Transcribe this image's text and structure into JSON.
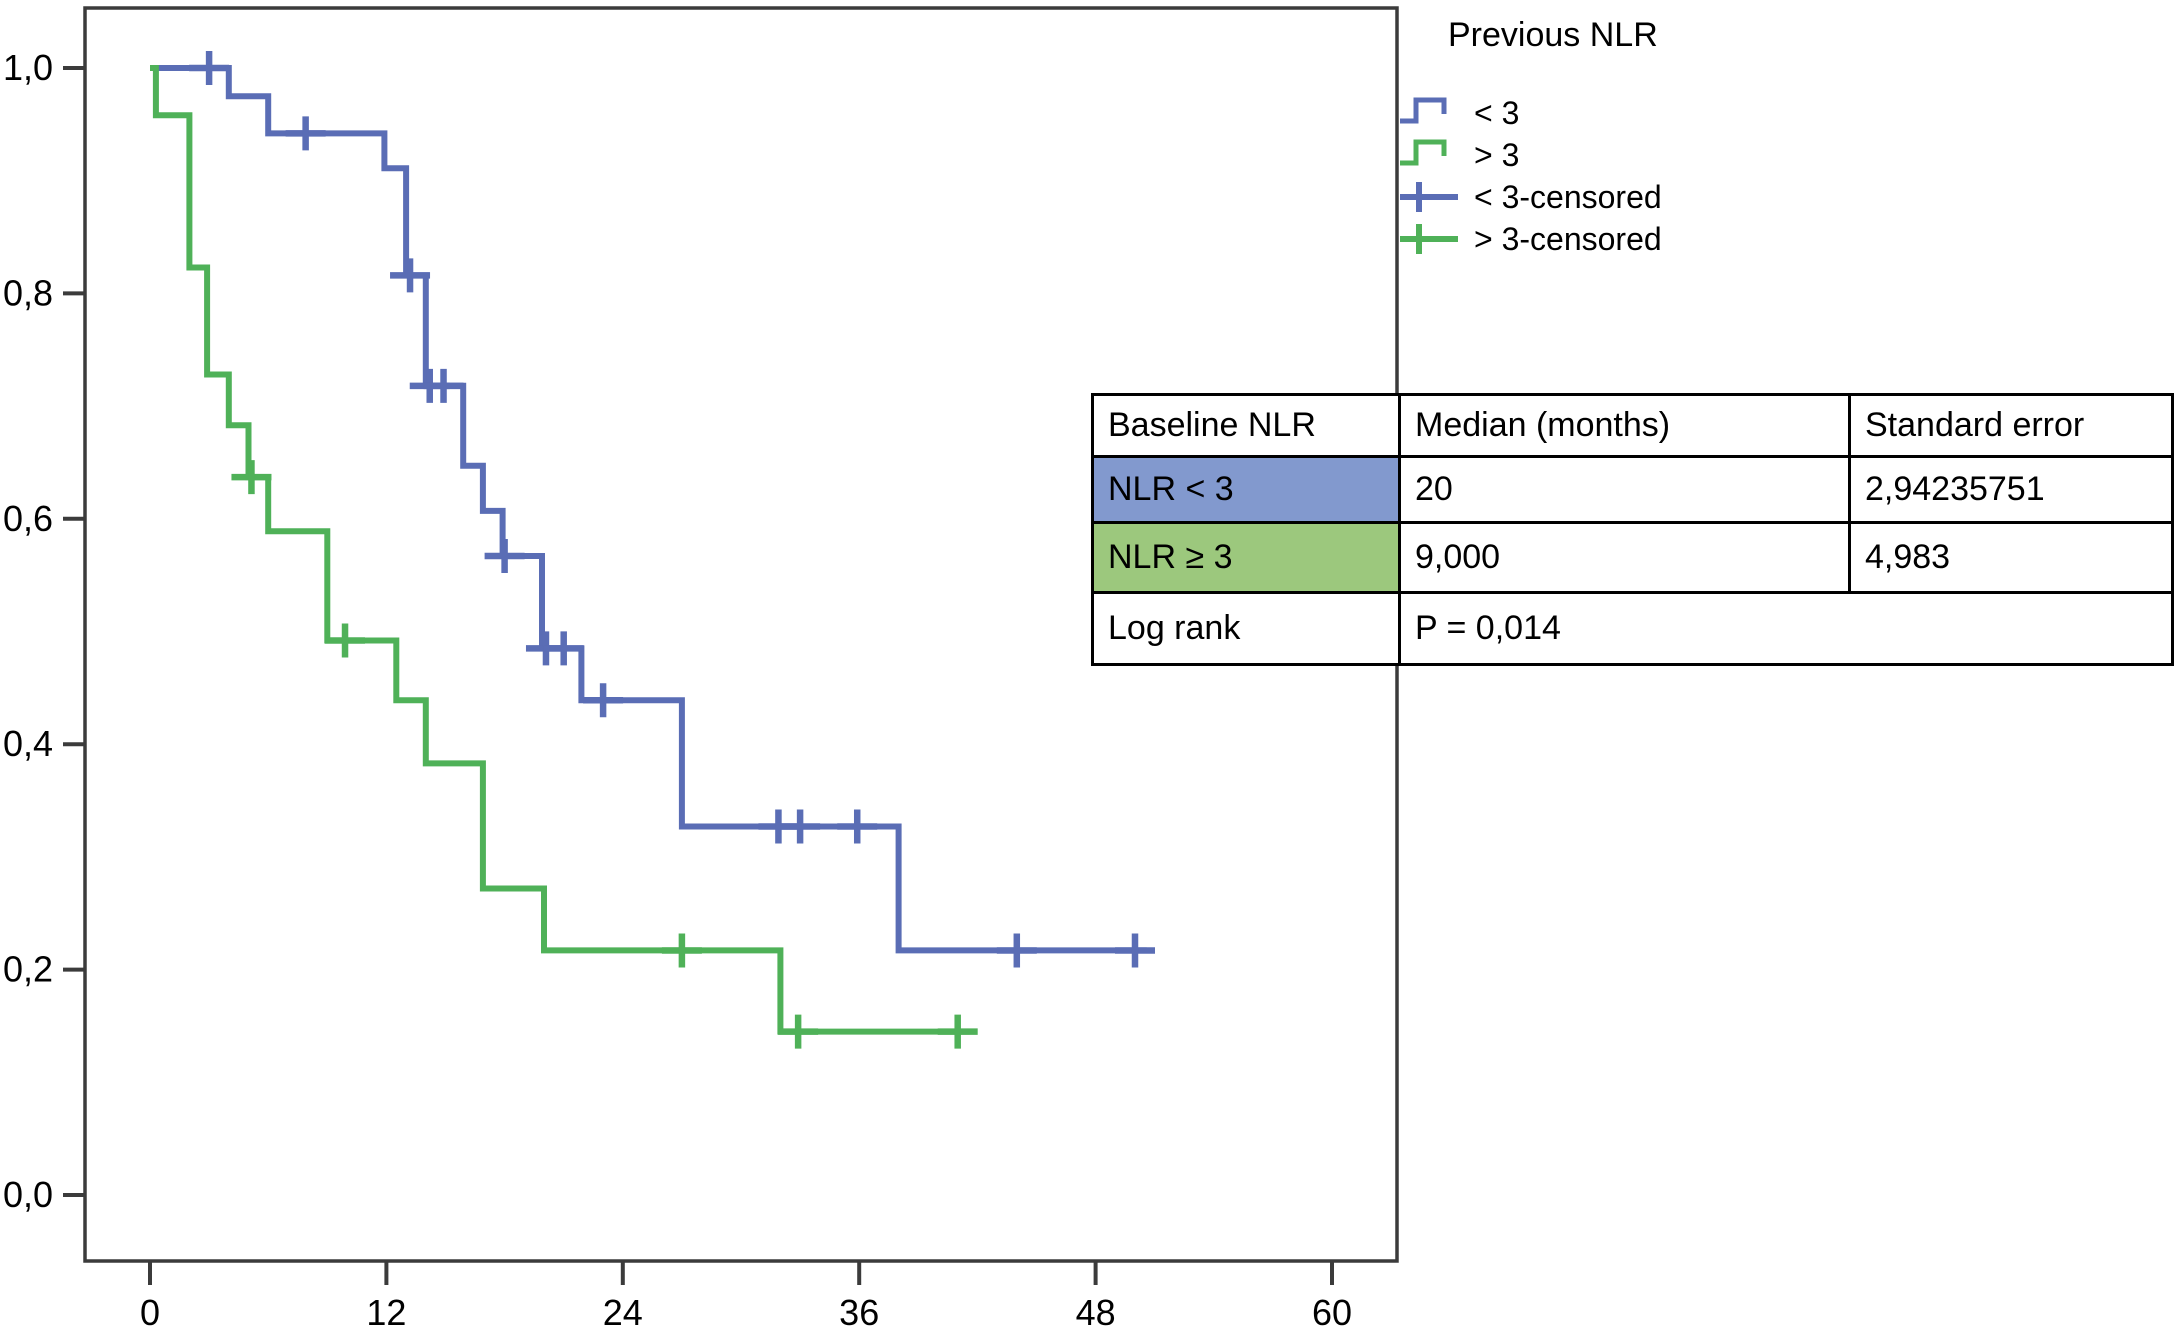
{
  "accent_colors": {
    "curve_blue": "#5a6db5",
    "curve_green": "#4fb158",
    "table_blue_fill": "#8299ce",
    "table_green_fill": "#9cc87d",
    "axis_color": "#3b3b3b",
    "text_color": "#000000"
  },
  "legend": {
    "title": "Previous NLR",
    "items": [
      {
        "label": "< 3",
        "type": "step-line",
        "color": "#5a6db5"
      },
      {
        "label": "> 3",
        "type": "step-line",
        "color": "#4fb158"
      },
      {
        "label": "< 3-censored",
        "type": "censor-cross",
        "color": "#5a6db5"
      },
      {
        "label": "> 3-censored",
        "type": "censor-cross",
        "color": "#4fb158"
      }
    ]
  },
  "table": {
    "headers": [
      "Baseline NLR",
      "Median (months)",
      "Standard error"
    ],
    "rows": [
      {
        "label": "NLR < 3",
        "fill": "#8299ce",
        "median": "20",
        "se": "2,94235751"
      },
      {
        "label": "NLR ≥ 3",
        "fill": "#9cc87d",
        "median": "9,000",
        "se": "4,983"
      }
    ],
    "footer": {
      "label": "Log rank",
      "value": "P = 0,014"
    }
  },
  "chart_data": {
    "type": "line",
    "subtype": "kaplan-meier-step",
    "title": "",
    "xlabel": "",
    "ylabel": "",
    "xlim": [
      -3.3,
      63.3
    ],
    "ylim": [
      -0.06,
      1.055
    ],
    "grid": false,
    "legend_position": "top-right-outside",
    "x_ticks": [
      {
        "label": "0",
        "m": 0
      },
      {
        "label": "12",
        "m": 12
      },
      {
        "label": "24",
        "m": 24
      },
      {
        "label": "36",
        "m": 36
      },
      {
        "label": "48",
        "m": 48
      },
      {
        "label": "60",
        "m": 60
      }
    ],
    "y_ticks": [
      {
        "label": "0,0",
        "v": 0.0
      },
      {
        "label": "0,2",
        "v": 0.2
      },
      {
        "label": "0,4",
        "v": 0.4
      },
      {
        "label": "0,6",
        "v": 0.6
      },
      {
        "label": "0,8",
        "v": 0.8
      },
      {
        "label": "1,0",
        "v": 1.0
      }
    ],
    "series": [
      {
        "name": "< 3",
        "color": "#5a6db5",
        "steps": [
          [
            0,
            1.0
          ],
          [
            4,
            0.975
          ],
          [
            6,
            0.942
          ],
          [
            11.9,
            0.911
          ],
          [
            13,
            0.816
          ],
          [
            14,
            0.718
          ],
          [
            15.9,
            0.647
          ],
          [
            16.9,
            0.607
          ],
          [
            17.9,
            0.567
          ],
          [
            19.9,
            0.485
          ],
          [
            21.9,
            0.439
          ],
          [
            27,
            0.327
          ],
          [
            38,
            0.217
          ]
        ],
        "end_time": 50.6,
        "censors": [
          [
            3,
            1.0
          ],
          [
            7.9,
            0.942
          ],
          [
            13.2,
            0.816
          ],
          [
            14.2,
            0.718
          ],
          [
            14.9,
            0.718
          ],
          [
            18,
            0.567
          ],
          [
            20.1,
            0.485
          ],
          [
            21,
            0.485
          ],
          [
            23,
            0.439
          ],
          [
            31.9,
            0.327
          ],
          [
            33,
            0.327
          ],
          [
            35.9,
            0.327
          ],
          [
            44,
            0.217
          ],
          [
            50,
            0.217
          ]
        ],
        "median_months": "20"
      },
      {
        "name": "> 3",
        "color": "#4fb158",
        "steps": [
          [
            0,
            1.0
          ],
          [
            0.3,
            0.958
          ],
          [
            2,
            0.823
          ],
          [
            2.9,
            0.728
          ],
          [
            4,
            0.683
          ],
          [
            5,
            0.637
          ],
          [
            6,
            0.589
          ],
          [
            9,
            0.492
          ],
          [
            12.5,
            0.439
          ],
          [
            14,
            0.383
          ],
          [
            16.9,
            0.272
          ],
          [
            20,
            0.217
          ],
          [
            32,
            0.145
          ]
        ],
        "end_time": 41.6,
        "censors": [
          [
            5.15,
            0.637
          ],
          [
            9.9,
            0.492
          ],
          [
            27,
            0.217
          ],
          [
            32.9,
            0.145
          ],
          [
            41,
            0.145
          ]
        ],
        "median_months": "9,000"
      }
    ]
  }
}
